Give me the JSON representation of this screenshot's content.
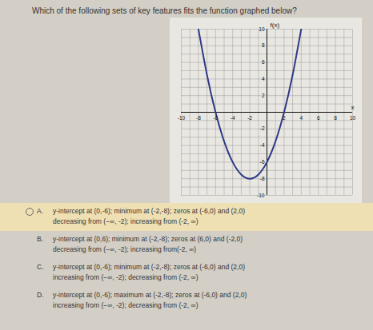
{
  "question": "Which of the following sets of key features fits the function graphed below?",
  "chart_data": {
    "type": "line",
    "x_label": "x",
    "y_label": "f(x)",
    "x": [
      -8,
      -7,
      -6,
      -5,
      -4,
      -3,
      -2,
      -1,
      0,
      1,
      2,
      3,
      4
    ],
    "values": [
      10,
      4.5,
      0,
      -3.5,
      -6,
      -7.5,
      -8,
      -7.5,
      -6,
      -3.5,
      0,
      4.5,
      10
    ],
    "color": "#2d3a86",
    "xlim": [
      -10,
      10
    ],
    "ylim": [
      -10,
      10
    ],
    "xticks": [
      -10,
      -8,
      -6,
      -4,
      -2,
      2,
      4,
      6,
      8,
      10
    ],
    "yticks": [
      -10,
      -8,
      -6,
      -4,
      -2,
      2,
      4,
      6,
      8,
      10
    ],
    "grid": true
  },
  "options": [
    {
      "letter": "A.",
      "selected": true,
      "lines": [
        "y-intercept at (0,-6); minimum at (-2,-8); zeros at (-6,0) and (2,0)",
        "decreasing from (−∞, -2); increasing from (-2, ∞)"
      ]
    },
    {
      "letter": "B.",
      "selected": false,
      "lines": [
        "y-intercept at (0,6); minimum at (-2,-8); zeros at (6,0) and (-2,0)",
        "decreasing from (−∞, -2); increasing from(-2, ∞)"
      ]
    },
    {
      "letter": "C.",
      "selected": false,
      "lines": [
        "y-intercept at (0,-6); minimum at (-2,-8); zeros at (-6,0) and (2,0)",
        "increasing from (−∞, -2); decreasing from (-2, ∞)"
      ]
    },
    {
      "letter": "D.",
      "selected": false,
      "lines": [
        "y-intercept at (0,-6); maximum at (-2,-8); zeros at (-6,0) and (2,0)",
        "increasing from (−∞, -2); decreasing from (-2, ∞)"
      ]
    }
  ]
}
